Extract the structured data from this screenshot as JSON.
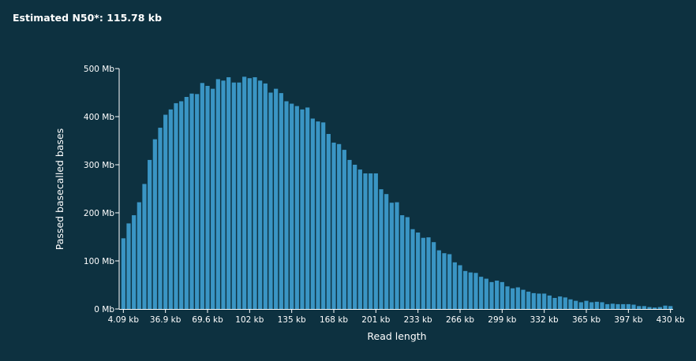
{
  "header": {
    "n50_text": "Estimated N50*: 115.78 kb"
  },
  "colors": {
    "background": "#0d3140",
    "bar": "#3a95c4",
    "axis": "#ffffff"
  },
  "chart_data": {
    "type": "bar",
    "title": "",
    "xlabel": "Read length",
    "ylabel": "Passed basecalled bases",
    "y_unit": "Mb",
    "ylim": [
      0,
      500
    ],
    "y_ticks": [
      {
        "value": 0,
        "label": "0 Mb"
      },
      {
        "value": 100,
        "label": "100 Mb"
      },
      {
        "value": 200,
        "label": "200 Mb"
      },
      {
        "value": 300,
        "label": "300 Mb"
      },
      {
        "value": 400,
        "label": "400 Mb"
      },
      {
        "value": 500,
        "label": "500 Mb"
      }
    ],
    "x_tick_labels": [
      "4.09 kb",
      "36.9 kb",
      "69.6 kb",
      "102 kb",
      "135 kb",
      "168 kb",
      "201 kb",
      "233 kb",
      "266 kb",
      "299 kb",
      "332 kb",
      "365 kb",
      "397 kb",
      "430 kb"
    ],
    "x_tick_every": 8,
    "grid": false,
    "legend": "none",
    "values": [
      147,
      178,
      195,
      222,
      260,
      310,
      353,
      377,
      404,
      415,
      428,
      432,
      441,
      448,
      447,
      470,
      464,
      458,
      478,
      475,
      482,
      471,
      471,
      483,
      480,
      482,
      475,
      469,
      450,
      458,
      449,
      432,
      427,
      422,
      415,
      419,
      396,
      390,
      388,
      364,
      346,
      343,
      331,
      310,
      300,
      290,
      282,
      282,
      282,
      249,
      239,
      221,
      222,
      195,
      191,
      166,
      159,
      148,
      149,
      139,
      122,
      116,
      114,
      97,
      91,
      79,
      76,
      75,
      67,
      63,
      56,
      59,
      56,
      47,
      43,
      45,
      40,
      36,
      33,
      32,
      32,
      28,
      23,
      26,
      24,
      20,
      17,
      14,
      17,
      14,
      15,
      14,
      10,
      11,
      10,
      10,
      10,
      9,
      6,
      6,
      4,
      3,
      4,
      7,
      6
    ]
  }
}
